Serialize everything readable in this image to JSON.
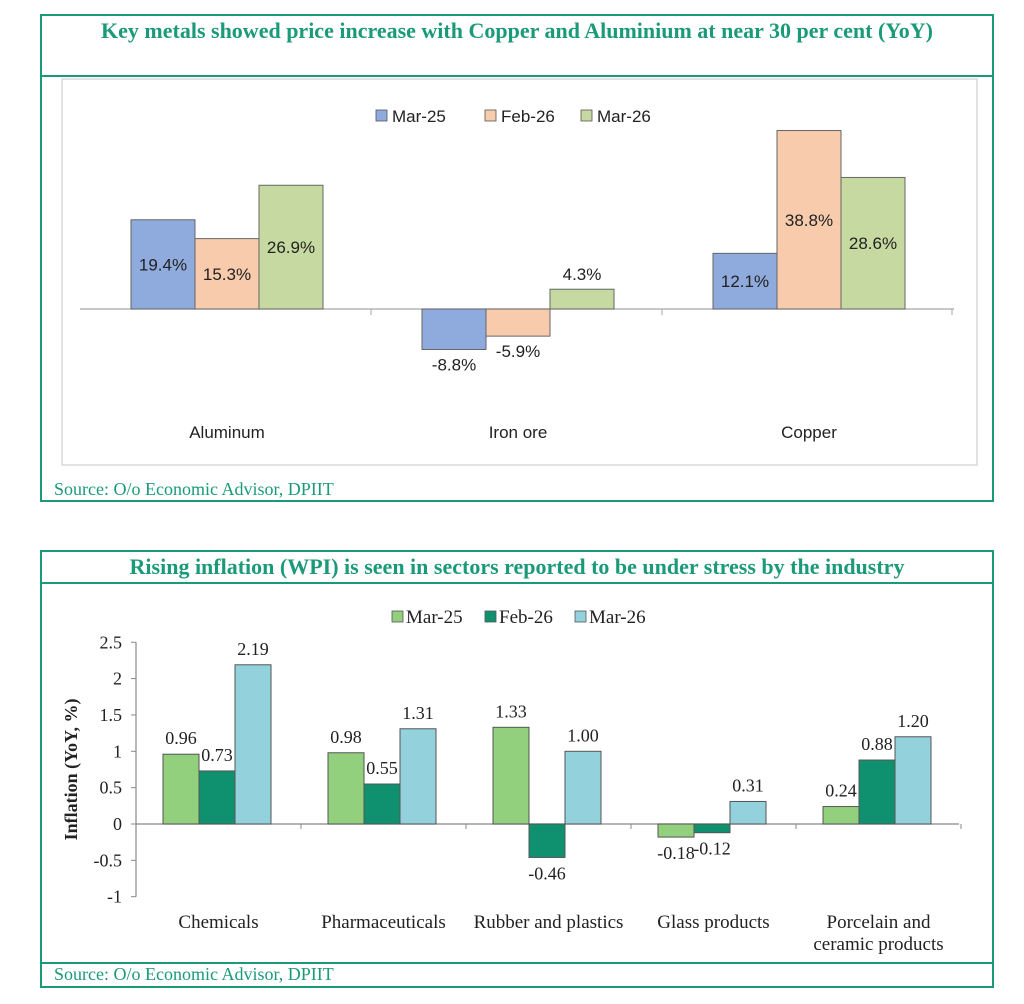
{
  "chart_data": [
    {
      "type": "bar",
      "title": "Key metals showed price increase with Copper and Aluminium at near 30 per cent (YoY)",
      "categories": [
        "Aluminum",
        "Iron ore",
        "Copper"
      ],
      "series": [
        {
          "name": "Mar-25",
          "values": [
            19.4,
            -8.8,
            12.1
          ],
          "labels": [
            "19.4%",
            "-8.8%",
            "12.1%"
          ],
          "color": "#8faadc"
        },
        {
          "name": "Feb-26",
          "values": [
            15.3,
            -5.9,
            38.8
          ],
          "labels": [
            "15.3%",
            "-5.9%",
            "38.8%"
          ],
          "color": "#f8cbad"
        },
        {
          "name": "Mar-26",
          "values": [
            26.9,
            4.3,
            28.6
          ],
          "labels": [
            "26.9%",
            "4.3%",
            "28.6%"
          ],
          "color": "#c5d9a0"
        }
      ],
      "legend": "top",
      "grid": false,
      "source": "Source: O/o Economic Advisor, DPIIT"
    },
    {
      "type": "bar",
      "title": "Rising inflation (WPI) is seen in sectors reported to be under stress by the industry",
      "ylabel": "Inflation (YoY, %)",
      "ylim": [
        -1,
        2.5
      ],
      "yticks": [
        "-1",
        "-0.5",
        "0",
        "0.5",
        "1",
        "1.5",
        "2",
        "2.5"
      ],
      "categories": [
        "Chemicals",
        "Pharmaceuticals",
        "Rubber and plastics",
        "Glass products",
        "Porcelain and ceramic products"
      ],
      "category_lines": [
        [
          "Chemicals"
        ],
        [
          "Pharmaceuticals"
        ],
        [
          "Rubber and plastics"
        ],
        [
          "Glass products"
        ],
        [
          "Porcelain and",
          "ceramic products"
        ]
      ],
      "series": [
        {
          "name": "Mar-25",
          "values": [
            0.96,
            0.98,
            1.33,
            -0.18,
            0.24
          ],
          "labels": [
            "0.96",
            "0.98",
            "1.33",
            "-0.18",
            "0.24"
          ],
          "color": "#92d07e"
        },
        {
          "name": "Feb-26",
          "values": [
            0.73,
            0.55,
            -0.46,
            -0.12,
            0.88
          ],
          "labels": [
            "0.73",
            "0.55",
            "-0.46",
            "-0.12",
            "0.88"
          ],
          "color": "#0f9170"
        },
        {
          "name": "Mar-26",
          "values": [
            2.19,
            1.31,
            1.0,
            0.31,
            1.2
          ],
          "labels": [
            "2.19",
            "1.31",
            "1.00",
            "0.31",
            "1.20"
          ],
          "color": "#93d1dc"
        }
      ],
      "legend": "top",
      "grid": false,
      "source": "Source: O/o Economic Advisor, DPIIT"
    }
  ]
}
